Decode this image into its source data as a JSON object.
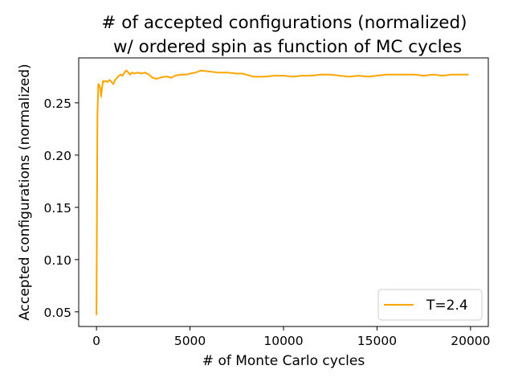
{
  "chart_data": {
    "type": "line",
    "title_line1": "# of accepted configurations (normalized)",
    "title_line2": "w/ ordered spin as function of MC cycles",
    "xlabel": "# of Monte Carlo cycles",
    "ylabel": "Accepted configurations (normalized)",
    "xlim": [
      -950,
      20950
    ],
    "ylim": [
      0.036,
      0.293
    ],
    "x_ticks": [
      0,
      5000,
      10000,
      15000,
      20000
    ],
    "x_tick_labels": [
      "0",
      "5000",
      "10000",
      "15000",
      "20000"
    ],
    "y_ticks": [
      0.05,
      0.1,
      0.15,
      0.2,
      0.25
    ],
    "y_tick_labels": [
      "0.05",
      "0.10",
      "0.15",
      "0.20",
      "0.25"
    ],
    "grid": false,
    "legend_position": "lower right",
    "series": [
      {
        "name": "T=2.4",
        "color": "#FFA500",
        "x": [
          0,
          50,
          100,
          150,
          200,
          250,
          300,
          350,
          400,
          500,
          600,
          700,
          800,
          900,
          1000,
          1100,
          1200,
          1300,
          1400,
          1500,
          1600,
          1700,
          1800,
          1900,
          2000,
          2200,
          2400,
          2600,
          2800,
          3000,
          3200,
          3400,
          3600,
          3800,
          4000,
          4200,
          4500,
          4800,
          5000,
          5300,
          5600,
          6000,
          6500,
          7000,
          7500,
          7800,
          8000,
          8400,
          8600,
          9000,
          9500,
          10000,
          10500,
          11000,
          11500,
          12000,
          12500,
          13000,
          13500,
          14000,
          14500,
          15000,
          15500,
          16000,
          16500,
          17000,
          17500,
          18000,
          18500,
          19000,
          19500,
          19900
        ],
        "y": [
          0.047,
          0.238,
          0.268,
          0.267,
          0.264,
          0.256,
          0.265,
          0.271,
          0.27,
          0.271,
          0.27,
          0.272,
          0.27,
          0.268,
          0.272,
          0.274,
          0.276,
          0.277,
          0.276,
          0.279,
          0.281,
          0.279,
          0.277,
          0.279,
          0.278,
          0.279,
          0.278,
          0.279,
          0.277,
          0.274,
          0.273,
          0.274,
          0.275,
          0.275,
          0.274,
          0.276,
          0.277,
          0.277,
          0.278,
          0.279,
          0.281,
          0.28,
          0.279,
          0.279,
          0.278,
          0.278,
          0.277,
          0.275,
          0.275,
          0.275,
          0.276,
          0.276,
          0.275,
          0.276,
          0.276,
          0.277,
          0.277,
          0.276,
          0.275,
          0.276,
          0.275,
          0.276,
          0.277,
          0.277,
          0.277,
          0.277,
          0.276,
          0.277,
          0.276,
          0.277,
          0.277,
          0.277
        ]
      }
    ]
  }
}
